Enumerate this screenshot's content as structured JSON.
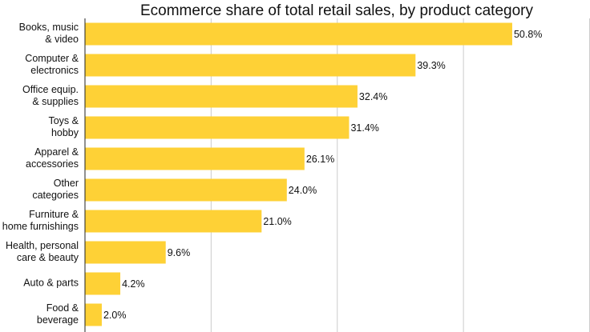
{
  "chart_data": {
    "type": "bar",
    "orientation": "horizontal",
    "title": "Ecommerce share of total retail sales, by product category",
    "categories": [
      "Books, music\n& video",
      "Computer &\nelectronics",
      "Office equip.\n& supplies",
      "Toys &\nhobby",
      "Apparel &\naccessories",
      "Other\ncategories",
      "Furniture &\nhome furnishings",
      "Health, personal\ncare & beauty",
      "Auto & parts",
      "Food &\nbeverage"
    ],
    "values": [
      50.8,
      39.3,
      32.4,
      31.4,
      26.1,
      24.0,
      21.0,
      9.6,
      4.2,
      2.0
    ],
    "value_labels": [
      "50.8%",
      "39.3%",
      "32.4%",
      "31.4%",
      "26.1%",
      "24.0%",
      "21.0%",
      "9.6%",
      "4.2%",
      "2.0%"
    ],
    "color": "#fed136",
    "xlim": [
      0,
      60
    ],
    "xticks": [
      0,
      15,
      30,
      45,
      60
    ],
    "grid": true
  }
}
